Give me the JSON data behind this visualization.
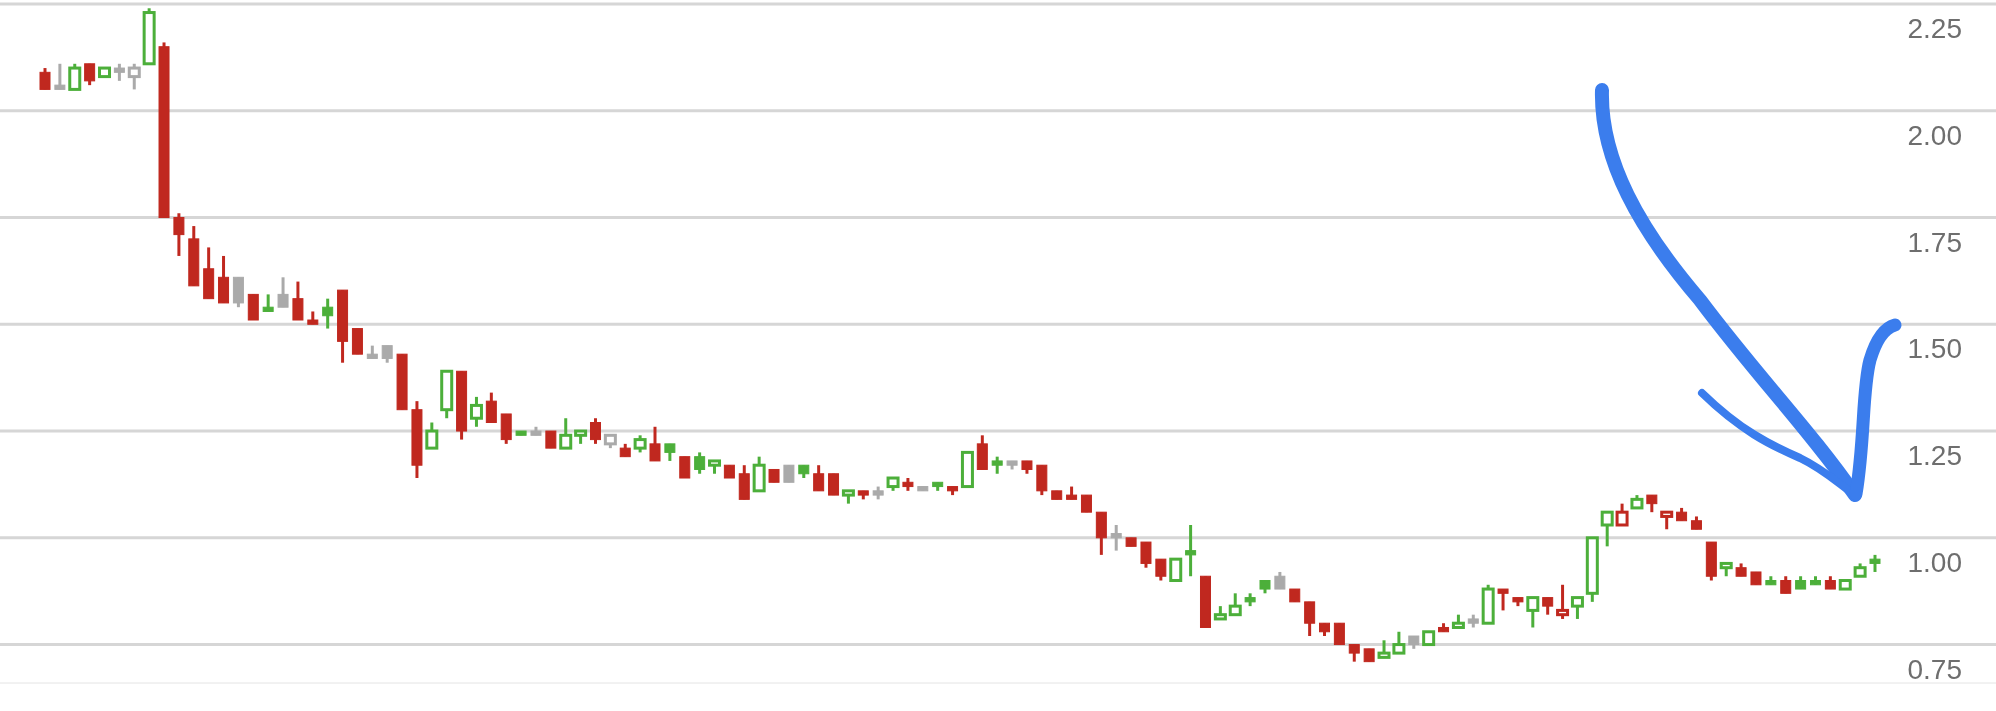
{
  "chart_data": {
    "type": "candlestick",
    "categories": [
      null,
      null,
      null,
      null,
      null,
      null,
      null,
      null,
      null,
      null,
      null,
      null,
      null,
      null,
      null,
      null,
      null,
      null,
      null,
      null,
      null,
      null,
      null,
      null,
      null,
      null,
      null,
      null,
      null,
      null,
      null,
      null,
      null,
      null,
      null,
      null,
      null,
      null,
      null,
      null,
      null,
      null,
      null,
      null,
      null,
      null,
      null,
      null,
      null,
      null,
      null,
      null,
      null,
      null,
      null,
      null,
      null,
      null,
      null,
      null,
      null,
      null,
      null,
      null,
      null,
      null,
      null,
      null,
      null,
      null,
      null,
      null,
      null,
      null,
      null,
      null,
      null,
      null,
      null,
      null,
      null,
      null,
      null,
      null,
      null,
      null,
      null,
      null,
      null,
      null,
      null,
      null,
      null,
      null,
      null,
      null,
      null,
      null,
      null,
      null,
      null,
      null,
      null,
      null,
      null,
      null,
      null,
      null,
      null,
      null,
      null,
      null,
      null,
      null,
      null,
      null,
      null,
      null,
      null,
      null,
      null,
      null,
      null,
      null
    ],
    "ohlc": [
      [
        2.09,
        2.1,
        2.05,
        2.05
      ],
      [
        2.06,
        2.11,
        2.05,
        2.05
      ],
      [
        2.05,
        2.11,
        2.05,
        2.1
      ],
      [
        2.11,
        2.11,
        2.06,
        2.07
      ],
      [
        2.08,
        2.1,
        2.08,
        2.1
      ],
      [
        2.1,
        2.11,
        2.07,
        2.09
      ],
      [
        2.08,
        2.11,
        2.05,
        2.1
      ],
      [
        2.11,
        2.24,
        2.11,
        2.23
      ],
      [
        2.15,
        2.16,
        1.75,
        1.75
      ],
      [
        1.75,
        1.76,
        1.66,
        1.71
      ],
      [
        1.7,
        1.73,
        1.59,
        1.59
      ],
      [
        1.63,
        1.68,
        1.56,
        1.56
      ],
      [
        1.61,
        1.66,
        1.55,
        1.55
      ],
      [
        1.61,
        1.61,
        1.54,
        1.55
      ],
      [
        1.57,
        1.57,
        1.51,
        1.51
      ],
      [
        1.54,
        1.57,
        1.53,
        1.53
      ],
      [
        1.57,
        1.61,
        1.54,
        1.54
      ],
      [
        1.56,
        1.6,
        1.51,
        1.51
      ],
      [
        1.51,
        1.53,
        1.5,
        1.5
      ],
      [
        1.54,
        1.56,
        1.49,
        1.52
      ],
      [
        1.58,
        1.58,
        1.41,
        1.46
      ],
      [
        1.49,
        1.49,
        1.43,
        1.43
      ],
      [
        1.43,
        1.45,
        1.42,
        1.42
      ],
      [
        1.45,
        1.45,
        1.41,
        1.42
      ],
      [
        1.43,
        1.43,
        1.3,
        1.3
      ],
      [
        1.3,
        1.32,
        1.14,
        1.17
      ],
      [
        1.21,
        1.27,
        1.21,
        1.25
      ],
      [
        1.3,
        1.39,
        1.28,
        1.39
      ],
      [
        1.39,
        1.39,
        1.23,
        1.25
      ],
      [
        1.28,
        1.33,
        1.26,
        1.31
      ],
      [
        1.32,
        1.34,
        1.27,
        1.27
      ],
      [
        1.29,
        1.29,
        1.22,
        1.23
      ],
      [
        1.25,
        1.25,
        1.24,
        1.24
      ],
      [
        1.25,
        1.26,
        1.24,
        1.24
      ],
      [
        1.25,
        1.25,
        1.21,
        1.21
      ],
      [
        1.21,
        1.28,
        1.21,
        1.24
      ],
      [
        1.24,
        1.25,
        1.22,
        1.25
      ],
      [
        1.27,
        1.28,
        1.22,
        1.23
      ],
      [
        1.22,
        1.24,
        1.21,
        1.24
      ],
      [
        1.21,
        1.22,
        1.19,
        1.19
      ],
      [
        1.21,
        1.24,
        1.2,
        1.23
      ],
      [
        1.22,
        1.26,
        1.18,
        1.18
      ],
      [
        1.22,
        1.22,
        1.18,
        1.2
      ],
      [
        1.19,
        1.19,
        1.14,
        1.14
      ],
      [
        1.19,
        1.2,
        1.15,
        1.16
      ],
      [
        1.17,
        1.18,
        1.15,
        1.18
      ],
      [
        1.17,
        1.17,
        1.14,
        1.14
      ],
      [
        1.15,
        1.17,
        1.09,
        1.09
      ],
      [
        1.11,
        1.19,
        1.11,
        1.17
      ],
      [
        1.16,
        1.16,
        1.13,
        1.13
      ],
      [
        1.17,
        1.17,
        1.13,
        1.13
      ],
      [
        1.17,
        1.17,
        1.14,
        1.15
      ],
      [
        1.15,
        1.17,
        1.11,
        1.11
      ],
      [
        1.15,
        1.15,
        1.1,
        1.1
      ],
      [
        1.1,
        1.11,
        1.08,
        1.11
      ],
      [
        1.11,
        1.11,
        1.09,
        1.1
      ],
      [
        1.11,
        1.12,
        1.09,
        1.1
      ],
      [
        1.12,
        1.14,
        1.11,
        1.14
      ],
      [
        1.13,
        1.14,
        1.11,
        1.12
      ],
      [
        1.12,
        1.12,
        1.11,
        1.11
      ],
      [
        1.13,
        1.13,
        1.11,
        1.12
      ],
      [
        1.12,
        1.12,
        1.1,
        1.11
      ],
      [
        1.12,
        1.2,
        1.12,
        1.2
      ],
      [
        1.22,
        1.24,
        1.16,
        1.16
      ],
      [
        1.18,
        1.19,
        1.15,
        1.17
      ],
      [
        1.18,
        1.18,
        1.16,
        1.17
      ],
      [
        1.18,
        1.18,
        1.15,
        1.16
      ],
      [
        1.17,
        1.17,
        1.1,
        1.11
      ],
      [
        1.11,
        1.11,
        1.09,
        1.09
      ],
      [
        1.1,
        1.12,
        1.09,
        1.09
      ],
      [
        1.1,
        1.1,
        1.06,
        1.06
      ],
      [
        1.06,
        1.06,
        0.96,
        1.0
      ],
      [
        1.01,
        1.03,
        0.97,
        1.0
      ],
      [
        1.0,
        1.0,
        0.98,
        0.98
      ],
      [
        0.99,
        0.99,
        0.93,
        0.94
      ],
      [
        0.95,
        0.95,
        0.9,
        0.91
      ],
      [
        0.9,
        0.95,
        0.9,
        0.95
      ],
      [
        0.97,
        1.03,
        0.91,
        0.96
      ],
      [
        0.91,
        0.91,
        0.79,
        0.79
      ],
      [
        0.81,
        0.84,
        0.81,
        0.82
      ],
      [
        0.82,
        0.87,
        0.82,
        0.84
      ],
      [
        0.86,
        0.87,
        0.84,
        0.85
      ],
      [
        0.9,
        0.9,
        0.87,
        0.88
      ],
      [
        0.91,
        0.92,
        0.88,
        0.88
      ],
      [
        0.88,
        0.88,
        0.85,
        0.85
      ],
      [
        0.85,
        0.85,
        0.77,
        0.8
      ],
      [
        0.8,
        0.8,
        0.77,
        0.78
      ],
      [
        0.8,
        0.8,
        0.75,
        0.75
      ],
      [
        0.75,
        0.75,
        0.71,
        0.73
      ],
      [
        0.74,
        0.74,
        0.71,
        0.71
      ],
      [
        0.72,
        0.76,
        0.72,
        0.73
      ],
      [
        0.73,
        0.78,
        0.73,
        0.75
      ],
      [
        0.77,
        0.77,
        0.74,
        0.75
      ],
      [
        0.75,
        0.78,
        0.75,
        0.78
      ],
      [
        0.79,
        0.8,
        0.78,
        0.78
      ],
      [
        0.79,
        0.82,
        0.79,
        0.8
      ],
      [
        0.81,
        0.82,
        0.79,
        0.8
      ],
      [
        0.8,
        0.89,
        0.8,
        0.88
      ],
      [
        0.88,
        0.88,
        0.83,
        0.87
      ],
      [
        0.86,
        0.86,
        0.84,
        0.85
      ],
      [
        0.83,
        0.86,
        0.79,
        0.86
      ],
      [
        0.86,
        0.86,
        0.82,
        0.84
      ],
      [
        0.82,
        0.89,
        0.81,
        0.83
      ],
      [
        0.84,
        0.86,
        0.81,
        0.86
      ],
      [
        0.87,
        1.0,
        0.85,
        1.0
      ],
      [
        1.03,
        1.06,
        0.98,
        1.06
      ],
      [
        1.03,
        1.08,
        1.03,
        1.06
      ],
      [
        1.07,
        1.1,
        1.07,
        1.09
      ],
      [
        1.1,
        1.1,
        1.06,
        1.08
      ],
      [
        1.05,
        1.06,
        1.02,
        1.06
      ],
      [
        1.06,
        1.07,
        1.04,
        1.04
      ],
      [
        1.04,
        1.05,
        1.02,
        1.02
      ],
      [
        0.99,
        0.99,
        0.9,
        0.91
      ],
      [
        0.93,
        0.94,
        0.91,
        0.94
      ],
      [
        0.93,
        0.94,
        0.91,
        0.91
      ],
      [
        0.92,
        0.92,
        0.89,
        0.89
      ],
      [
        0.9,
        0.91,
        0.89,
        0.89
      ],
      [
        0.9,
        0.91,
        0.87,
        0.87
      ],
      [
        0.9,
        0.91,
        0.88,
        0.88
      ],
      [
        0.9,
        0.91,
        0.89,
        0.89
      ],
      [
        0.9,
        0.91,
        0.88,
        0.88
      ],
      [
        0.88,
        0.9,
        0.88,
        0.9
      ],
      [
        0.91,
        0.94,
        0.91,
        0.93
      ],
      [
        0.95,
        0.96,
        0.92,
        0.94
      ]
    ],
    "colors": [
      "#c0281f",
      "#aaaaaa",
      "#4caf3a",
      "#c0281f",
      "#4caf3a",
      "#aaaaaa",
      "#aaaaaa",
      "#4caf3a",
      "#c0281f",
      "#c0281f",
      "#c0281f",
      "#c0281f",
      "#c0281f",
      "#aaaaaa",
      "#c0281f",
      "#4caf3a",
      "#aaaaaa",
      "#c0281f",
      "#c0281f",
      "#4caf3a",
      "#c0281f",
      "#c0281f",
      "#aaaaaa",
      "#aaaaaa",
      "#c0281f",
      "#c0281f",
      "#4caf3a",
      "#4caf3a",
      "#c0281f",
      "#4caf3a",
      "#c0281f",
      "#c0281f",
      "#4caf3a",
      "#aaaaaa",
      "#c0281f",
      "#4caf3a",
      "#4caf3a",
      "#c0281f",
      "#aaaaaa",
      "#c0281f",
      "#4caf3a",
      "#c0281f",
      "#4caf3a",
      "#c0281f",
      "#4caf3a",
      "#4caf3a",
      "#c0281f",
      "#c0281f",
      "#4caf3a",
      "#c0281f",
      "#aaaaaa",
      "#4caf3a",
      "#c0281f",
      "#c0281f",
      "#4caf3a",
      "#c0281f",
      "#aaaaaa",
      "#4caf3a",
      "#c0281f",
      "#aaaaaa",
      "#4caf3a",
      "#c0281f",
      "#4caf3a",
      "#c0281f",
      "#4caf3a",
      "#aaaaaa",
      "#c0281f",
      "#c0281f",
      "#c0281f",
      "#c0281f",
      "#c0281f",
      "#c0281f",
      "#aaaaaa",
      "#c0281f",
      "#c0281f",
      "#c0281f",
      "#4caf3a",
      "#4caf3a",
      "#c0281f",
      "#4caf3a",
      "#4caf3a",
      "#4caf3a",
      "#4caf3a",
      "#aaaaaa",
      "#c0281f",
      "#c0281f",
      "#c0281f",
      "#c0281f",
      "#c0281f",
      "#c0281f",
      "#4caf3a",
      "#4caf3a",
      "#aaaaaa",
      "#4caf3a",
      "#c0281f",
      "#4caf3a",
      "#aaaaaa",
      "#4caf3a",
      "#c0281f",
      "#c0281f",
      "#4caf3a",
      "#c0281f",
      "#c0281f",
      "#4caf3a",
      "#4caf3a",
      "#4caf3a",
      "#c0281f",
      "#4caf3a",
      "#c0281f",
      "#c0281f",
      "#c0281f",
      "#c0281f",
      "#c0281f",
      "#4caf3a",
      "#c0281f",
      "#c0281f",
      "#4caf3a",
      "#c0281f",
      "#4caf3a",
      "#4caf3a",
      "#c0281f",
      "#4caf3a",
      "#4caf3a",
      "#4caf3a"
    ],
    "ylim": [
      0.66,
      2.25
    ],
    "yticks": [
      {
        "value": 0.75,
        "label": "0.75"
      },
      {
        "value": 1,
        "label": "1.00"
      },
      {
        "value": 1.25,
        "label": "1.25"
      },
      {
        "value": 1.5,
        "label": "1.50"
      },
      {
        "value": 1.75,
        "label": "1.75"
      },
      {
        "value": 2,
        "label": "2.00"
      },
      {
        "value": 2.25,
        "label": "2.25"
      }
    ],
    "grid": "y",
    "tick_labels": "y"
  }
}
